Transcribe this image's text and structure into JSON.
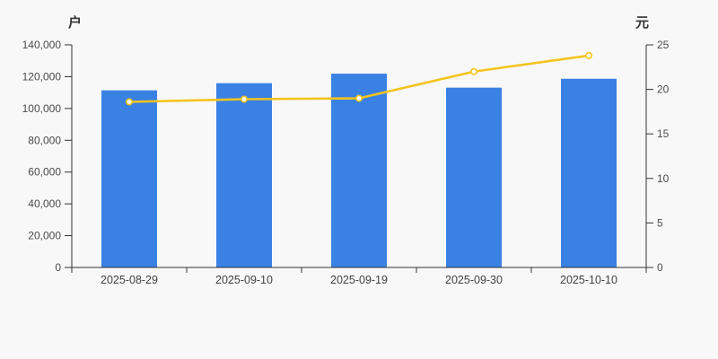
{
  "page": {
    "background_color": "#f8f8f8",
    "axis_line_color": "#333333",
    "tick_label_color": "#4a4a4a"
  },
  "chart_data": {
    "type": "bar",
    "subtype": "dual-axis-bar-and-line",
    "title": "",
    "grid": false,
    "legend_position": "none",
    "categories": [
      "2025-08-29",
      "2025-09-10",
      "2025-09-19",
      "2025-09-30",
      "2025-10-10"
    ],
    "series": [
      {
        "name": "户",
        "type": "bar",
        "axis": "left",
        "color": "#3a81e4",
        "values": [
          111400,
          115900,
          121900,
          113100,
          118700
        ]
      },
      {
        "name": "元",
        "type": "line",
        "axis": "right",
        "color": "#f4c41c",
        "marker_fill": "#ffffff",
        "values": [
          18.6,
          18.9,
          19.0,
          22.0,
          23.8
        ]
      }
    ],
    "left_axis": {
      "name": "户",
      "min": 0,
      "max": 140000,
      "tick_step": 20000,
      "tick_labels": [
        "0",
        "20,000",
        "40,000",
        "60,000",
        "80,000",
        "100,000",
        "120,000",
        "140,000"
      ]
    },
    "right_axis": {
      "name": "元",
      "min": 0,
      "max": 25,
      "tick_step": 5,
      "tick_labels": [
        "0",
        "5",
        "10",
        "15",
        "20",
        "25"
      ]
    }
  }
}
